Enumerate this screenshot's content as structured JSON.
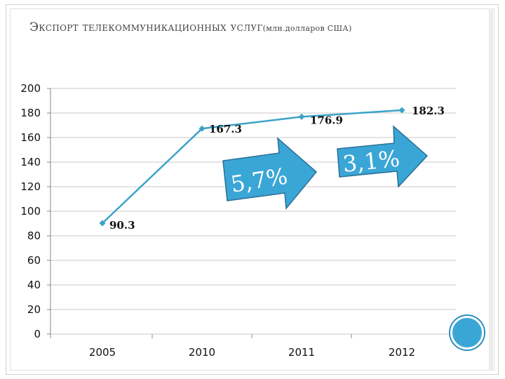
{
  "title": {
    "main": "Экспорт телекоммуникационных услуг",
    "sub": "(млн.долларов США)"
  },
  "colors": {
    "line": "#3ba3c8",
    "arrow": "#3aa6d6",
    "arrow_stroke": "#2a6f96",
    "grid": "#c8c8c8",
    "circle": "#3aa6d6"
  },
  "chart_data": {
    "type": "line",
    "categories": [
      "2005",
      "2010",
      "2011",
      "2012"
    ],
    "series": [
      {
        "values": [
          90.3,
          167.3,
          176.9,
          182.3
        ]
      }
    ],
    "data_labels": [
      "90.3",
      "167.3",
      "176.9",
      "182.3"
    ],
    "ylim": [
      0,
      200
    ],
    "yticks": [
      0,
      20,
      40,
      60,
      80,
      100,
      120,
      140,
      160,
      180,
      200
    ],
    "grid": true,
    "annotations": [
      {
        "text": "5,7%"
      },
      {
        "text": "3,1%"
      }
    ]
  }
}
